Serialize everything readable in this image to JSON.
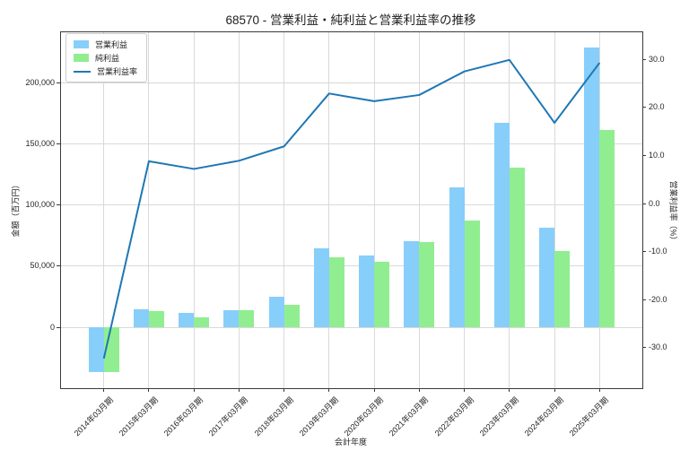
{
  "chart_data": {
    "type": "combo",
    "title": "68570 - 営業利益・純利益と営業利益率の推移",
    "xlabel": "会計年度",
    "ylabel_left": "金額（百万円）",
    "ylabel_right": "営業利益率（%）",
    "categories": [
      "2014年03月期",
      "2015年03月期",
      "2016年03月期",
      "2017年03月期",
      "2018年03月期",
      "2019年03月期",
      "2020年03月期",
      "2021年03月期",
      "2022年03月期",
      "2023年03月期",
      "2024年03月期",
      "2025年03月期"
    ],
    "series": [
      {
        "name": "営業利益",
        "type": "bar",
        "axis": "left",
        "color": "#87CEFA",
        "values": [
          -37000,
          14400,
          11600,
          13800,
          24600,
          64700,
          58700,
          70700,
          114700,
          167700,
          81600,
          229100
        ]
      },
      {
        "name": "純利益",
        "type": "bar",
        "axis": "left",
        "color": "#90EE90",
        "values": [
          -36500,
          13200,
          7800,
          14100,
          18100,
          57000,
          53500,
          69800,
          87300,
          130400,
          62300,
          161300
        ]
      },
      {
        "name": "営業利益率",
        "type": "line",
        "axis": "right",
        "color": "#1f77b4",
        "values": [
          -32.3,
          8.8,
          7.2,
          8.9,
          11.9,
          22.9,
          21.3,
          22.6,
          27.5,
          29.9,
          16.8,
          29.3
        ]
      }
    ],
    "left_axis": {
      "range": [
        -50000,
        241500
      ],
      "ticks": [
        {
          "value": 0,
          "label": "0"
        },
        {
          "value": 50000,
          "label": "50,000"
        },
        {
          "value": 100000,
          "label": "100,000"
        },
        {
          "value": 150000,
          "label": "150,000"
        },
        {
          "value": 200000,
          "label": "200,000"
        }
      ]
    },
    "right_axis": {
      "range": [
        -38.5,
        35.6
      ],
      "ticks": [
        {
          "value": 30,
          "label": "30.0"
        },
        {
          "value": 20,
          "label": "20.0"
        },
        {
          "value": 10,
          "label": "10.0"
        },
        {
          "value": 0,
          "label": "0.0"
        },
        {
          "value": -10,
          "label": "-10.0"
        },
        {
          "value": -20,
          "label": "-20.0"
        },
        {
          "value": -30,
          "label": "-30.0"
        }
      ]
    },
    "grid": true,
    "legend_position": "upper-left",
    "colors": {
      "grid": "#d9d9d9",
      "spine": "#3a3a3a",
      "text": "#262626",
      "background": "#ffffff"
    }
  }
}
